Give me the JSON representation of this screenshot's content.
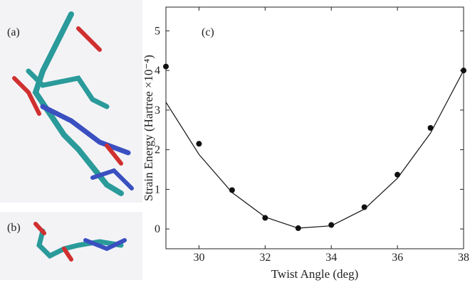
{
  "panels": {
    "a": "(a)",
    "b": "(b)"
  },
  "chart_data": {
    "type": "scatter",
    "panel_label": "(c)",
    "xlabel": "Twist Angle (deg)",
    "ylabel": "Strain Energy (Hartree ×10⁻⁴)",
    "x": [
      29,
      30,
      31,
      32,
      33,
      34,
      35,
      36,
      37,
      38
    ],
    "series": [
      {
        "type": "scatter",
        "color": "#111111",
        "values": [
          4.1,
          2.15,
          0.98,
          0.28,
          0.02,
          0.1,
          0.55,
          1.37,
          2.55,
          4.0
        ]
      },
      {
        "type": "line",
        "color": "#111111",
        "values": [
          3.2,
          1.88,
          0.92,
          0.3,
          0.02,
          0.08,
          0.5,
          1.28,
          2.42,
          4.0
        ]
      }
    ],
    "xlim": [
      29,
      38
    ],
    "xticks": [
      30,
      32,
      34,
      36,
      38
    ],
    "ylim": [
      -0.5,
      5.6
    ],
    "yticks": [
      0,
      1,
      2,
      3,
      4,
      5
    ]
  }
}
